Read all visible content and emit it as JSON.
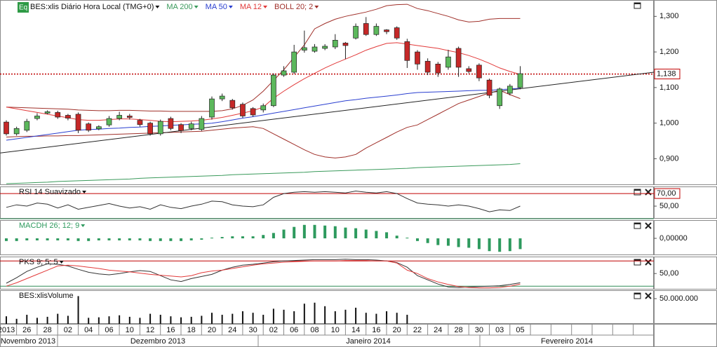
{
  "chart_data": [
    {
      "type": "candlestick",
      "title": "BES:xlis Diário Hora Local (TMG+0)",
      "badge": "Eq",
      "categories": [
        "2013",
        null,
        "26",
        null,
        "28",
        null,
        "02",
        null,
        "04",
        null,
        "06",
        null,
        "10",
        null,
        "12",
        null,
        "16",
        null,
        "18",
        null,
        "20",
        null,
        "24",
        null,
        "30",
        null,
        "02",
        null,
        "06",
        null,
        "08",
        null,
        "10",
        null,
        "14",
        null,
        "16",
        null,
        "20",
        null,
        "22",
        null,
        "24",
        null,
        "28",
        null,
        "30",
        null,
        "03",
        null,
        "05"
      ],
      "months": [
        "Novembro 2013",
        "Dezembro 2013",
        "Janeiro 2014",
        "Fevereiro 2014"
      ],
      "open": [
        1003,
        970,
        980,
        1013,
        1028,
        1030,
        1022,
        1025,
        998,
        984,
        995,
        1013,
        1020,
        1008,
        1000,
        970,
        1013,
        996,
        985,
        982,
        1017,
        1068,
        1064,
        1053,
        1041,
        1037,
        1049,
        1135,
        1143,
        1205,
        1202,
        1210,
        1214,
        1225,
        1239,
        1280,
        1249,
        1262,
        1268,
        1229,
        1200,
        1174,
        1166,
        1157,
        1210,
        1153,
        1163,
        1121,
        1049,
        1084,
        1100
      ],
      "high": [
        1008,
        990,
        1012,
        1028,
        1036,
        1035,
        1026,
        1030,
        1002,
        994,
        1020,
        1032,
        1026,
        1012,
        1004,
        1010,
        1018,
        1000,
        1004,
        1020,
        1075,
        1083,
        1068,
        1058,
        1045,
        1055,
        1140,
        1160,
        1220,
        1260,
        1222,
        1222,
        1250,
        1228,
        1280,
        1298,
        1280,
        1264,
        1272,
        1237,
        1205,
        1182,
        1172,
        1206,
        1215,
        1160,
        1168,
        1125,
        1100,
        1110,
        1160
      ],
      "low": [
        965,
        965,
        975,
        1008,
        1025,
        1012,
        1008,
        972,
        975,
        980,
        990,
        1008,
        1010,
        990,
        965,
        965,
        980,
        972,
        980,
        978,
        1010,
        1062,
        1038,
        1015,
        1018,
        1030,
        1045,
        1130,
        1138,
        1198,
        1198,
        1205,
        1208,
        1180,
        1235,
        1245,
        1245,
        1250,
        1234,
        1155,
        1150,
        1135,
        1130,
        1150,
        1130,
        1140,
        1118,
        1070,
        1040,
        1078,
        1095
      ],
      "close": [
        970,
        985,
        1005,
        1020,
        1032,
        1017,
        1014,
        980,
        980,
        990,
        1013,
        1022,
        1016,
        996,
        970,
        1005,
        985,
        979,
        998,
        1013,
        1068,
        1076,
        1043,
        1020,
        1023,
        1049,
        1135,
        1147,
        1200,
        1212,
        1214,
        1216,
        1233,
        1218,
        1272,
        1249,
        1272,
        1257,
        1239,
        1176,
        1166,
        1143,
        1141,
        1186,
        1157,
        1145,
        1127,
        1078,
        1096,
        1104,
        1139
      ],
      "up_color": "#5cb85c",
      "down_color": "#c62828",
      "series": [
        {
          "name": "MA 200",
          "color": "#3a9a5b",
          "values": [
            830,
            831,
            832,
            833,
            834,
            836,
            837,
            838,
            839,
            840,
            841,
            842,
            843,
            845,
            846,
            847,
            848,
            849,
            850,
            851,
            852,
            853,
            855,
            856,
            857,
            858,
            859,
            860,
            861,
            862,
            864,
            865,
            866,
            867,
            868,
            869,
            870,
            871,
            872,
            873,
            875,
            876,
            877,
            878,
            879,
            880,
            881,
            882,
            883,
            884,
            886
          ]
        },
        {
          "name": "MA 50",
          "color": "#2a3fd0",
          "values": [
            952,
            956,
            960,
            964,
            968,
            972,
            976,
            980,
            982,
            983,
            985,
            986,
            988,
            989,
            991,
            992,
            994,
            995,
            997,
            998,
            1000,
            1004,
            1009,
            1014,
            1018,
            1023,
            1028,
            1033,
            1038,
            1043,
            1048,
            1053,
            1058,
            1063,
            1066,
            1070,
            1073,
            1076,
            1079,
            1083,
            1086,
            1087,
            1088,
            1089,
            1090,
            1091,
            1092,
            1092,
            1094,
            1096,
            1098
          ]
        },
        {
          "name": "MA 12",
          "color": "#e23a3a",
          "values": [
            1045,
            1040,
            1035,
            1030,
            1025,
            1020,
            1015,
            1010,
            1008,
            1008,
            1010,
            1012,
            1012,
            1010,
            1008,
            1005,
            1004,
            1005,
            1006,
            1008,
            1012,
            1016,
            1022,
            1028,
            1035,
            1045,
            1070,
            1090,
            1108,
            1125,
            1140,
            1155,
            1168,
            1180,
            1192,
            1205,
            1215,
            1224,
            1226,
            1222,
            1218,
            1214,
            1210,
            1204,
            1198,
            1190,
            1180,
            1168,
            1155,
            1145,
            1137
          ]
        }
      ],
      "bollinger": {
        "name": "BOLL 20; 2",
        "color": "#a0302a",
        "upper": [
          1045,
          1044,
          1043,
          1042,
          1041,
          1040,
          1039,
          1037,
          1036,
          1035,
          1035,
          1036,
          1036,
          1035,
          1034,
          1034,
          1033,
          1033,
          1033,
          1033,
          1033,
          1035,
          1040,
          1050,
          1065,
          1090,
          1120,
          1150,
          1185,
          1220,
          1265,
          1280,
          1292,
          1300,
          1306,
          1312,
          1320,
          1330,
          1333,
          1334,
          1322,
          1316,
          1308,
          1300,
          1290,
          1284,
          1286,
          1292,
          1294,
          1294,
          1294
        ],
        "lower": [
          961,
          962,
          963,
          963,
          964,
          964,
          965,
          965,
          966,
          967,
          968,
          969,
          970,
          971,
          972,
          973,
          974,
          975,
          976,
          977,
          980,
          983,
          986,
          988,
          990,
          985,
          970,
          955,
          940,
          925,
          912,
          905,
          902,
          905,
          912,
          930,
          945,
          960,
          975,
          988,
          995,
          1010,
          1025,
          1040,
          1055,
          1065,
          1075,
          1085,
          1092,
          1080,
          1069
        ]
      },
      "trendline": {
        "x": [
          -0.6,
          63
        ],
        "values": [
          916,
          1143
        ],
        "color": "#222222"
      },
      "levels": [
        {
          "value": 1138,
          "label": "1,138",
          "color": "#c00000"
        }
      ],
      "ylim": [
        826,
        1342
      ],
      "yticks": [
        {
          "value": 1300,
          "label": "1,300"
        },
        {
          "value": 1200,
          "label": "1,200"
        },
        {
          "value": 1100,
          "label": "1,100"
        },
        {
          "value": 1000,
          "label": "1,000"
        },
        {
          "value": 900,
          "label": "0,900"
        }
      ]
    },
    {
      "type": "line",
      "title": "RSI 14 Suavizado",
      "series": [
        {
          "color": "#333333",
          "values": [
            48,
            52,
            50,
            55,
            53,
            47,
            52,
            45,
            48,
            51,
            54,
            50,
            47,
            49,
            45,
            52,
            48,
            46,
            50,
            53,
            58,
            57,
            52,
            50,
            49,
            52,
            64,
            70,
            72,
            73,
            72,
            73,
            72,
            71,
            74,
            72,
            71,
            73,
            70,
            62,
            55,
            53,
            52,
            50,
            52,
            50,
            46,
            41,
            44,
            43,
            50
          ]
        }
      ],
      "levels": [
        {
          "value": 70,
          "label": "70,00",
          "color": "#c00000"
        },
        {
          "value": 30,
          "color": "#2e8b57"
        }
      ],
      "ylim": [
        30,
        79
      ],
      "yticks": [
        {
          "value": 50,
          "label": "50,00"
        }
      ]
    },
    {
      "type": "bar",
      "title": "MACDH 26; 12; 9",
      "color": "#2e9a5e",
      "values": [
        -0.004,
        -0.004,
        -0.003,
        -0.003,
        -0.003,
        -0.003,
        -0.003,
        -0.004,
        -0.004,
        -0.003,
        -0.003,
        -0.003,
        -0.003,
        -0.003,
        -0.004,
        -0.004,
        -0.004,
        -0.004,
        -0.003,
        -0.002,
        0.001,
        0.002,
        0.003,
        0.003,
        0.003,
        0.005,
        0.008,
        0.013,
        0.017,
        0.02,
        0.02,
        0.019,
        0.018,
        0.016,
        0.015,
        0.013,
        0.011,
        0.009,
        0.004,
        0.001,
        -0.004,
        -0.007,
        -0.01,
        -0.011,
        -0.013,
        -0.014,
        -0.016,
        -0.019,
        -0.02,
        -0.019,
        -0.016
      ],
      "ylim": [
        -0.025,
        0.025
      ],
      "yticks": [
        {
          "value": 0,
          "label": "0,00000"
        }
      ]
    },
    {
      "type": "line",
      "title": "PKS 9; 5; 5",
      "series": [
        {
          "color": "#333333",
          "values": [
            27,
            40,
            55,
            65,
            73,
            72,
            68,
            60,
            53,
            49,
            47,
            50,
            54,
            57,
            55,
            45,
            35,
            31,
            38,
            43,
            48,
            58,
            65,
            70,
            72,
            75,
            78,
            80,
            81,
            82,
            83,
            83,
            83,
            84,
            83,
            83,
            82,
            80,
            76,
            65,
            45,
            35,
            25,
            18,
            17,
            18,
            19,
            20,
            21,
            24,
            28
          ]
        },
        {
          "color": "#e23a3a",
          "values": [
            20,
            28,
            38,
            48,
            58,
            68,
            70,
            68,
            65,
            62,
            58,
            56,
            54,
            51,
            48,
            46,
            44,
            42,
            45,
            52,
            56,
            58,
            62,
            66,
            70,
            73,
            75,
            77,
            78,
            79,
            80,
            80,
            80,
            81,
            81,
            81,
            80,
            80,
            75,
            58,
            50,
            38,
            30,
            24,
            19,
            17,
            16,
            16,
            17,
            20,
            25
          ]
        }
      ],
      "levels": [
        {
          "value": 80,
          "color": "#c00000"
        },
        {
          "value": 20,
          "color": "#2e8b57"
        }
      ],
      "ylim": [
        12,
        87
      ],
      "yticks": [
        {
          "value": 50,
          "label": "50,00"
        }
      ]
    },
    {
      "type": "bar",
      "title": "BES:xlisVolume",
      "color": "#111111",
      "values": [
        15000000,
        10000000,
        18000000,
        12000000,
        14000000,
        20000000,
        16000000,
        55000000,
        12000000,
        13000000,
        15000000,
        17000000,
        14000000,
        12000000,
        20000000,
        18000000,
        15000000,
        13000000,
        14000000,
        16000000,
        22000000,
        18000000,
        20000000,
        25000000,
        22000000,
        18000000,
        30000000,
        28000000,
        25000000,
        40000000,
        42000000,
        35000000,
        25000000,
        28000000,
        32000000,
        22000000,
        20000000,
        25000000,
        22000000,
        18000000,
        null,
        null,
        null,
        null,
        null,
        null,
        null,
        null,
        null,
        null,
        null
      ],
      "ylim": [
        0,
        63900000
      ],
      "yticks": [
        {
          "value": 50000000,
          "label": "50.000.000"
        }
      ]
    }
  ]
}
